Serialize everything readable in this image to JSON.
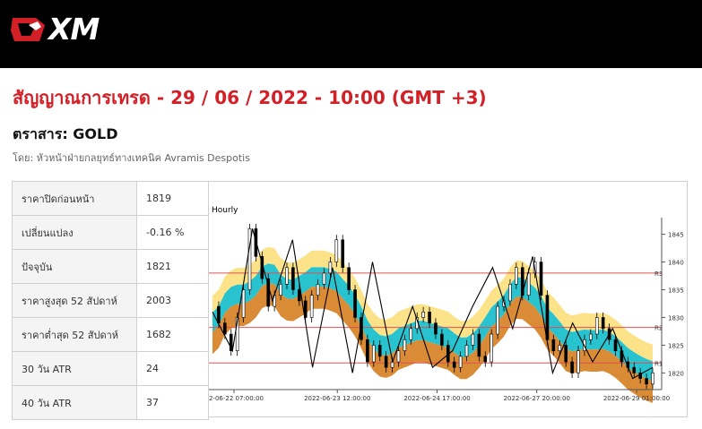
{
  "brand": {
    "name": "XM"
  },
  "headline": "สัญญาณการเทรด - 29 / 06 / 2022 - 10:00 (GMT +3)",
  "instrument": "ตราสาร: GOLD",
  "author": "โดย: หัวหน้าฝ่ายกลยุทธ์ทางเทคนิค Avramis Despotis",
  "stats": [
    {
      "label": "ราคาปิดก่อนหน้า",
      "value": "1819"
    },
    {
      "label": "เปลี่ยนแปลง",
      "value": "-0.16 %"
    },
    {
      "label": "ปัจจุบัน",
      "value": "1821"
    },
    {
      "label": "ราคาสูงสุด 52 สัปดาห์",
      "value": "2003"
    },
    {
      "label": "ราคาต่ำสุด 52 สัปดาห์",
      "value": "1682"
    },
    {
      "label": "30 วัน ATR",
      "value": "24"
    },
    {
      "label": "40 วัน ATR",
      "value": "37"
    }
  ],
  "chart_data": {
    "type": "candlestick",
    "title": "Hourly",
    "x_ticks": [
      "2-06-22 07:00:00",
      "2022-06-23 12:00:00",
      "2022-06-24 17:00:00",
      "2022-06-27 20:00:00",
      "2022-06-29 01:00:00"
    ],
    "y_ticks": [
      1820,
      1825,
      1830,
      1835,
      1840,
      1845
    ],
    "ylim": [
      1817,
      1848
    ],
    "resistance_levels": [
      {
        "name": "R3",
        "value": 1838
      },
      {
        "name": "R2",
        "value": 1828.2
      },
      {
        "name": "R1",
        "value": 1821.8
      }
    ],
    "price_path": [
      1832,
      1829,
      1827,
      1824,
      1830,
      1835,
      1846,
      1841,
      1837,
      1832,
      1834,
      1836,
      1839,
      1835,
      1833,
      1830,
      1834,
      1836,
      1838,
      1840,
      1844,
      1839,
      1835,
      1830,
      1826,
      1822,
      1825,
      1823,
      1821,
      1822,
      1824,
      1826,
      1828,
      1830,
      1831,
      1829,
      1827,
      1825,
      1822,
      1821,
      1823,
      1825,
      1827,
      1823,
      1822,
      1827,
      1832,
      1833,
      1836,
      1839,
      1834,
      1838,
      1840,
      1834,
      1826,
      1824,
      1825,
      1822,
      1820,
      1824,
      1826,
      1827,
      1830,
      1828,
      1826,
      1824,
      1822,
      1821,
      1820,
      1819,
      1818,
      1820
    ],
    "zigzag": [
      1831,
      1824,
      1846,
      1833,
      1844,
      1821,
      1839,
      1820,
      1840,
      1822,
      1832,
      1821,
      1824,
      1832,
      1839,
      1828,
      1841,
      1820,
      1829,
      1822,
      1828,
      1819,
      1821
    ],
    "colors": {
      "yellow_band": "#fce389",
      "cyan_band": "#28c3cf",
      "orange_band": "#d98b35",
      "resistance": "#e05050",
      "candle_up": "#ffffff",
      "candle_down": "#000000"
    }
  }
}
